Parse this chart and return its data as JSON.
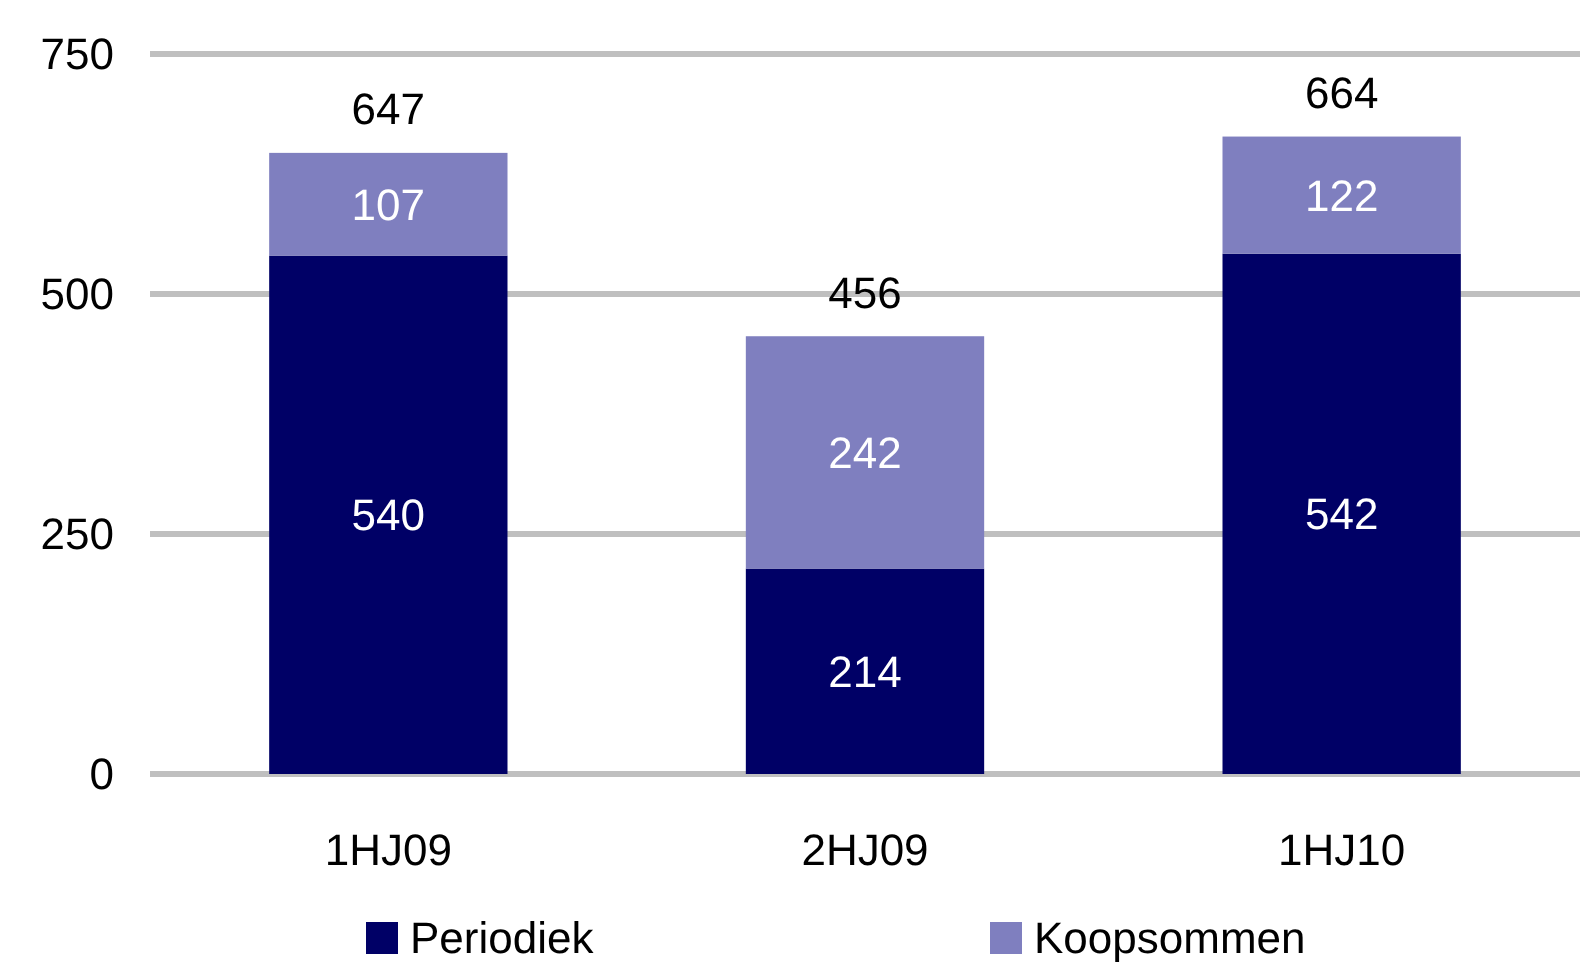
{
  "chart_data": {
    "type": "bar",
    "stacked": true,
    "categories": [
      "1HJ09",
      "2HJ09",
      "1HJ10"
    ],
    "series": [
      {
        "name": "Periodiek",
        "color": "#000066",
        "values": [
          540,
          214,
          542
        ]
      },
      {
        "name": "Koopsommen",
        "color": "#7f7fbf",
        "values": [
          107,
          242,
          122
        ]
      }
    ],
    "totals": [
      "647",
      "456",
      "664"
    ],
    "data_labels": true,
    "ylim": [
      0,
      750
    ],
    "yticks": [
      0,
      250,
      500,
      750
    ],
    "grid": "y",
    "legend": "bottom"
  }
}
